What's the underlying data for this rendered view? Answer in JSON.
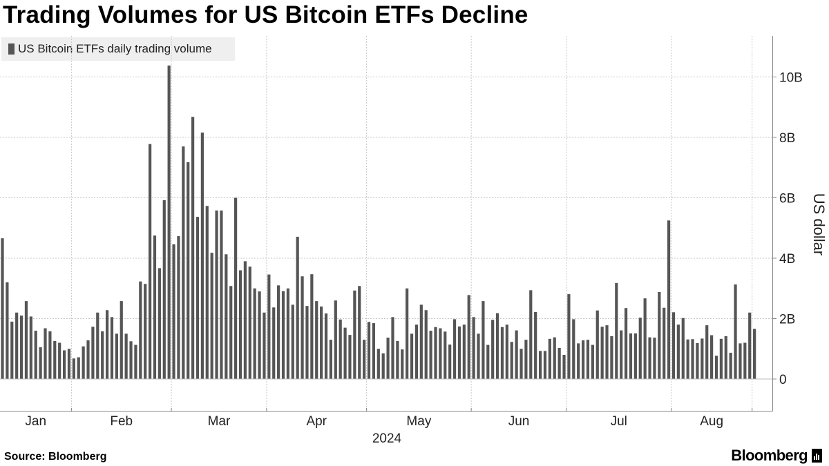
{
  "title": "Trading Volumes for US Bitcoin ETFs Decline",
  "source": "Source: Bloomberg",
  "brand": "Bloomberg",
  "colors": {
    "bar": "#555555",
    "grid": "#c8c8c8",
    "axis": "#888888",
    "legend_bg": "#efefef"
  },
  "chart_data": {
    "type": "bar",
    "title": "Trading Volumes for US Bitcoin ETFs Decline",
    "series": [
      {
        "name": "US Bitcoin ETFs daily trading volume",
        "unit": "USD billions"
      }
    ],
    "ylabel": "US dollar",
    "ylim": [
      -1,
      11
    ],
    "yticks": [
      0,
      2,
      4,
      6,
      8,
      10
    ],
    "ytick_labels": [
      "0",
      "2B",
      "4B",
      "6B",
      "8B",
      "10B"
    ],
    "xlabel": "2024",
    "month_labels": [
      "Jan",
      "Feb",
      "Mar",
      "Apr",
      "May",
      "Jun",
      "Jul",
      "Aug"
    ],
    "month_bar_index": [
      0,
      15,
      36,
      56,
      77,
      99,
      119,
      141,
      158
    ],
    "values": [
      4.66,
      3.2,
      1.9,
      2.2,
      2.1,
      2.58,
      2.07,
      1.6,
      1.05,
      1.68,
      1.58,
      1.26,
      1.2,
      0.95,
      1.0,
      0.68,
      0.72,
      1.08,
      1.28,
      1.73,
      2.2,
      1.58,
      2.28,
      2.05,
      1.5,
      2.58,
      1.5,
      1.25,
      1.13,
      3.23,
      3.15,
      7.78,
      4.75,
      3.67,
      5.92,
      10.38,
      4.46,
      4.73,
      7.7,
      7.18,
      8.68,
      5.37,
      8.16,
      5.73,
      4.18,
      5.58,
      5.58,
      4.13,
      3.08,
      6.0,
      3.6,
      3.9,
      3.72,
      3.0,
      2.9,
      2.2,
      3.46,
      2.37,
      3.1,
      2.91,
      3.0,
      2.46,
      4.71,
      3.4,
      2.42,
      3.47,
      2.58,
      2.4,
      2.17,
      1.3,
      2.6,
      1.97,
      1.7,
      1.46,
      2.93,
      3.08,
      1.3,
      1.89,
      1.85,
      1.0,
      0.85,
      1.37,
      2.05,
      1.26,
      0.98,
      3.0,
      1.5,
      1.8,
      2.46,
      2.28,
      1.6,
      1.72,
      1.68,
      1.57,
      1.14,
      1.98,
      1.74,
      1.8,
      2.78,
      2.05,
      1.5,
      2.58,
      1.13,
      1.96,
      2.18,
      1.72,
      1.8,
      1.23,
      1.61,
      1.0,
      1.3,
      2.94,
      2.22,
      0.93,
      0.93,
      1.33,
      1.38,
      1.03,
      0.8,
      2.81,
      1.98,
      1.18,
      1.28,
      1.3,
      1.13,
      2.27,
      1.73,
      1.78,
      1.42,
      3.18,
      1.61,
      2.35,
      1.51,
      1.51,
      2.03,
      2.67,
      1.38,
      1.37,
      2.88,
      2.36,
      5.25,
      2.21,
      1.8,
      2.02,
      1.31,
      1.32,
      1.19,
      1.34,
      1.78,
      1.45,
      0.77,
      1.33,
      1.42,
      0.87,
      3.13,
      1.18,
      1.2,
      2.2,
      1.66
    ]
  }
}
